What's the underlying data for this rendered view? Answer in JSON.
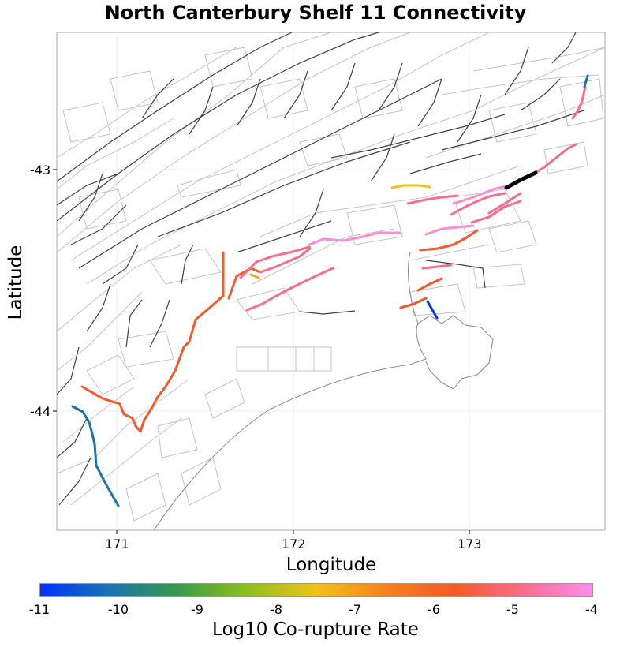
{
  "title": "North Canterbury Shelf 11 Connectivity",
  "xaxis": {
    "label": "Longitude",
    "ticks": [
      "171",
      "172",
      "173"
    ]
  },
  "yaxis": {
    "label": "Latitude",
    "ticks": [
      "-43",
      "-44"
    ]
  },
  "colorbar": {
    "label": "Log10 Co-rupture Rate",
    "ticks": [
      "-11",
      "-10",
      "-9",
      "-8",
      "-7",
      "-6",
      "-5",
      "-4"
    ],
    "colors": [
      "#0033ff",
      "#1a73b0",
      "#3a9a4a",
      "#8fbf1f",
      "#f2c21a",
      "#f5821e",
      "#f25a2a",
      "#f76e8c",
      "#fa8ef0"
    ]
  },
  "colors": {
    "black_fault": "#000000",
    "grey_fault": "#c0c0c0",
    "dark_fault": "#404040",
    "coast": "#888888"
  }
}
